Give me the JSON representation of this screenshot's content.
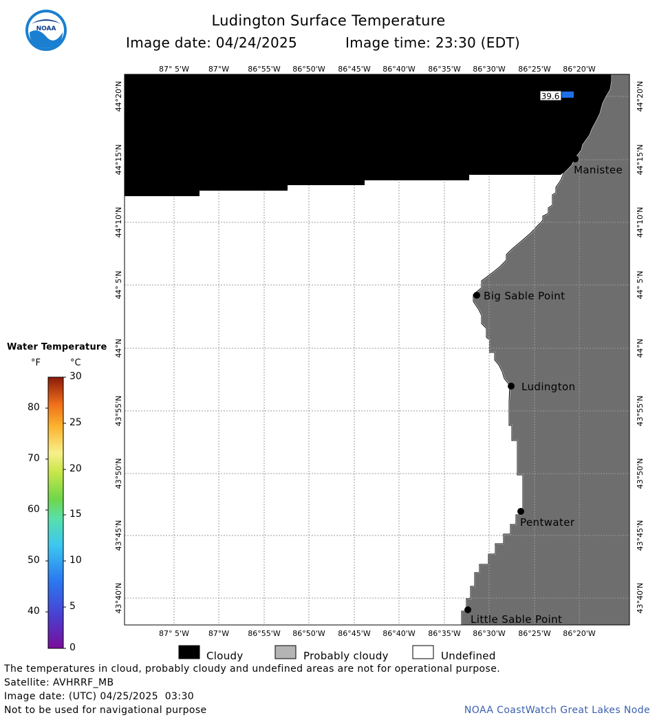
{
  "header": {
    "title": "Ludington Surface Temperature",
    "image_date": "Image date: 04/24/2025",
    "image_time": "Image time: 23:30 (EDT)",
    "logo_text": "NOAA"
  },
  "map": {
    "lon_labels": [
      "87° 5'W",
      "87°W",
      "86°55'W",
      "86°50'W",
      "86°45'W",
      "86°40'W",
      "86°35'W",
      "86°30'W",
      "86°25'W",
      "86°20'W"
    ],
    "lat_labels": [
      "44°20'N",
      "44°15'N",
      "44°10'N",
      "44° 5'N",
      "44°N",
      "43°55'N",
      "43°50'N",
      "43°45'N",
      "43°40'N"
    ],
    "cities": [
      "Manistee",
      "Big Sable Point",
      "Ludington",
      "Pentwater",
      "Little Sable Point"
    ],
    "temp_sample": {
      "value": "39.6",
      "color": "#1e6fe6"
    },
    "colors": {
      "cloudy": "#000000",
      "land": "#6e6e6e",
      "undefined": "#ffffff",
      "grid": "#999999"
    }
  },
  "colorbar": {
    "title": "Water Temperature",
    "unit_f": "°F",
    "unit_c": "°C",
    "f_ticks": [
      "80",
      "70",
      "60",
      "50",
      "40"
    ],
    "c_ticks": [
      "30",
      "25",
      "20",
      "15",
      "10",
      "5",
      "0"
    ]
  },
  "legend": {
    "cloudy": "Cloudy",
    "probably_cloudy": "Probably cloudy",
    "undefined": "Undefined"
  },
  "footer": {
    "note": "The temperatures in cloud, probably cloudy and undefined areas are not for operational purpose.",
    "satellite": "Satellite: AVHRRF_MB",
    "utc_date": "Image date: (UTC) 04/25/2025  03:30",
    "nav_warning": "Not to be used for navigational purpose",
    "credit": "NOAA CoastWatch Great Lakes Node"
  }
}
